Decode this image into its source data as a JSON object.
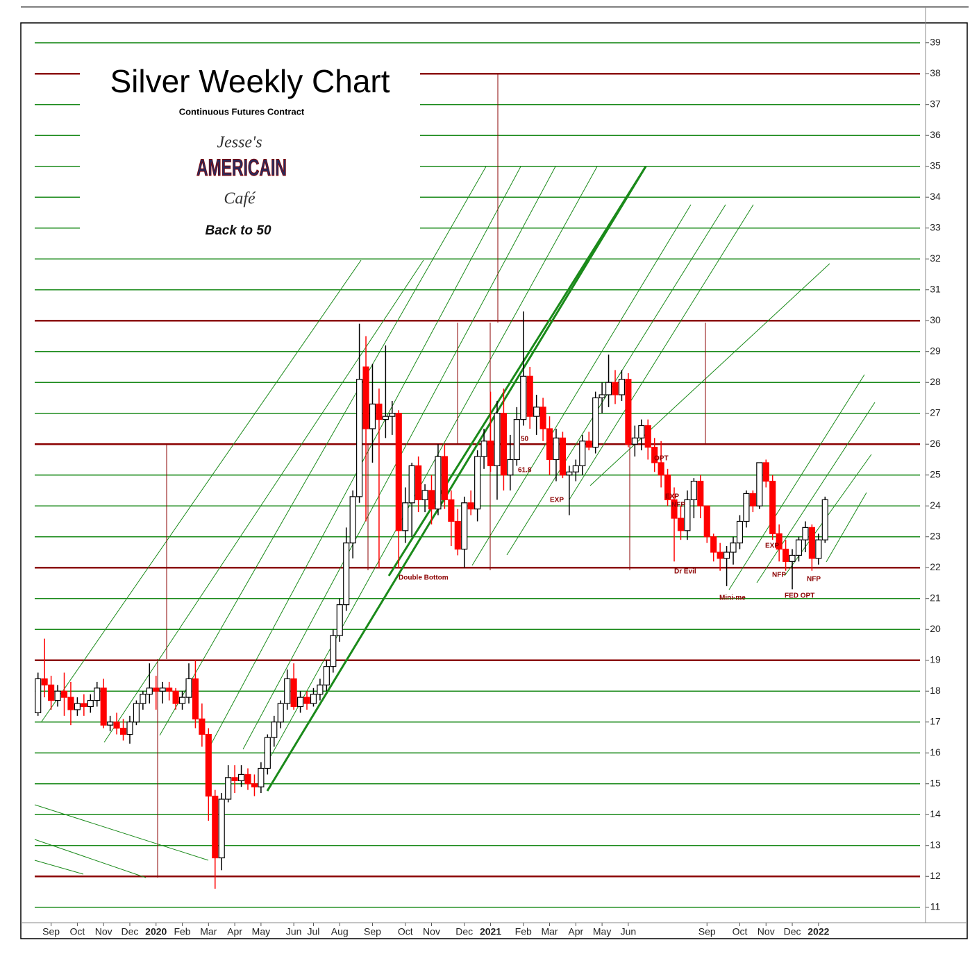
{
  "chart_data": {
    "type": "candlestick",
    "title": "Silver Weekly Chart",
    "subtitle": "Continuous Futures Contract",
    "logo": {
      "top": "Jesse's",
      "middle": "AMERICAIN",
      "bottom": "Café"
    },
    "tagline": "Back to 50",
    "annotations": [
      "50",
      "61.8",
      "EXP",
      "EXP",
      "NFP",
      "OPT",
      "Double Bottom",
      "Dr Evil",
      "Mini-me",
      "EXP",
      "NFP",
      "FED OPT",
      "NFP"
    ],
    "categories": [
      null,
      null,
      "Sep",
      null,
      null,
      null,
      "Oct",
      null,
      null,
      null,
      "Nov",
      null,
      null,
      null,
      "Dec",
      null,
      null,
      null,
      "2020",
      null,
      null,
      null,
      "Feb",
      null,
      null,
      null,
      "Mar",
      null,
      null,
      null,
      "Apr",
      null,
      null,
      null,
      "May",
      null,
      null,
      null,
      null,
      "Jun",
      null,
      null,
      "Jul",
      null,
      null,
      null,
      "Aug",
      null,
      null,
      null,
      null,
      "Sep",
      null,
      null,
      null,
      null,
      "Oct",
      null,
      null,
      null,
      "Nov",
      null,
      null,
      null,
      null,
      "Dec",
      null,
      null,
      null,
      "2021",
      null,
      null,
      null,
      null,
      "Feb",
      null,
      null,
      null,
      "Mar",
      null,
      null,
      null,
      "Apr",
      null,
      null,
      null,
      "May",
      null,
      null,
      null,
      "Jun",
      null,
      null,
      null,
      null,
      null,
      null,
      null,
      null,
      null,
      null,
      null,
      "Sep",
      null,
      null,
      null,
      null,
      "Oct",
      null,
      null,
      null,
      "Nov",
      null,
      null,
      null,
      "Dec",
      null,
      null,
      null,
      "2022",
      null
    ],
    "open": [
      17.3,
      18.4,
      18.2,
      17.7,
      18.0,
      17.8,
      17.4,
      17.6,
      17.5,
      17.7,
      18.1,
      16.9,
      17.0,
      16.8,
      16.6,
      17.0,
      17.6,
      17.9,
      18.1,
      18.0,
      18.1,
      18.0,
      17.6,
      17.8,
      18.4,
      17.1,
      16.6,
      14.6,
      12.6,
      14.5,
      15.2,
      15.1,
      15.3,
      15.0,
      14.9,
      15.5,
      16.5,
      17.0,
      17.6,
      18.4,
      17.5,
      17.8,
      17.6,
      17.9,
      18.2,
      18.8,
      19.8,
      20.8,
      22.8,
      24.3,
      28.5,
      26.5,
      27.3,
      26.8,
      26.9,
      27.0,
      23.2,
      24.1,
      25.3,
      24.2,
      24.5,
      23.9,
      25.6,
      24.2,
      23.5,
      22.6,
      24.1,
      23.9,
      25.6,
      26.1,
      25.3,
      27.0,
      25.0,
      25.5,
      26.8,
      28.2,
      26.9,
      27.2,
      26.5,
      25.5,
      26.2,
      25.0,
      25.1,
      25.3,
      26.1,
      25.9,
      27.5,
      27.6,
      28.0,
      27.6,
      28.1,
      26.0,
      26.2,
      26.6,
      25.9,
      25.4,
      25.0,
      24.2,
      23.6,
      23.2,
      24.2,
      24.8,
      24.0,
      23.0,
      22.5,
      22.3,
      22.5,
      22.8,
      23.5,
      24.4,
      24.0,
      25.4,
      24.8,
      23.1,
      22.6,
      22.2,
      22.4,
      22.9,
      23.3,
      22.3,
      22.9
    ],
    "high": [
      18.6,
      19.7,
      18.5,
      18.2,
      18.6,
      18.3,
      17.8,
      17.9,
      17.9,
      18.3,
      18.4,
      17.2,
      17.3,
      17.1,
      17.2,
      17.7,
      18.0,
      18.9,
      18.5,
      18.3,
      18.3,
      18.1,
      18.0,
      18.9,
      19.0,
      17.6,
      16.8,
      14.8,
      14.7,
      15.6,
      15.6,
      15.6,
      15.5,
      15.3,
      15.7,
      16.6,
      17.2,
      17.7,
      18.7,
      18.9,
      18.0,
      18.0,
      18.1,
      18.4,
      19.0,
      20.0,
      21.0,
      23.3,
      24.5,
      29.9,
      29.5,
      28.6,
      27.8,
      29.2,
      27.4,
      27.1,
      24.6,
      25.4,
      25.6,
      24.7,
      25.0,
      26.0,
      26.0,
      24.5,
      23.9,
      24.3,
      24.5,
      25.8,
      26.5,
      27.7,
      27.4,
      27.8,
      26.3,
      27.2,
      30.3,
      28.5,
      27.6,
      27.5,
      26.9,
      26.5,
      26.4,
      25.3,
      25.5,
      26.3,
      26.4,
      27.7,
      28.0,
      28.9,
      28.4,
      28.4,
      28.3,
      26.6,
      26.8,
      26.8,
      26.2,
      26.1,
      25.2,
      24.6,
      24.0,
      24.5,
      24.9,
      25.0,
      24.0,
      23.1,
      22.8,
      22.7,
      23.0,
      23.7,
      24.5,
      24.5,
      25.4,
      25.5,
      25.0,
      23.4,
      22.9,
      22.6,
      23.0,
      23.5,
      23.4,
      23.1,
      24.3
    ],
    "low": [
      17.2,
      17.8,
      17.4,
      17.5,
      17.2,
      16.9,
      17.2,
      17.2,
      17.3,
      17.5,
      16.8,
      16.7,
      16.6,
      16.4,
      16.3,
      16.9,
      17.4,
      17.6,
      17.4,
      17.6,
      17.7,
      17.4,
      17.4,
      17.6,
      16.8,
      16.2,
      13.8,
      11.6,
      12.2,
      14.4,
      14.7,
      14.9,
      14.8,
      14.6,
      14.7,
      15.3,
      16.2,
      16.8,
      17.4,
      17.4,
      17.3,
      17.4,
      17.5,
      17.7,
      18.0,
      18.6,
      19.6,
      20.6,
      22.3,
      24.1,
      23.5,
      25.4,
      22.0,
      26.2,
      26.3,
      22.0,
      22.8,
      23.0,
      23.8,
      23.8,
      23.4,
      23.7,
      23.9,
      22.7,
      22.4,
      22.0,
      23.7,
      23.5,
      25.2,
      25.1,
      24.2,
      24.5,
      24.5,
      25.3,
      26.6,
      26.5,
      26.3,
      26.1,
      25.0,
      24.8,
      24.9,
      23.7,
      24.8,
      25.0,
      25.8,
      25.7,
      27.0,
      27.2,
      27.3,
      27.4,
      25.9,
      25.6,
      25.8,
      25.5,
      25.1,
      24.6,
      24.0,
      22.2,
      22.9,
      22.9,
      23.6,
      23.6,
      22.8,
      22.2,
      21.9,
      21.4,
      22.1,
      22.6,
      23.3,
      23.8,
      23.9,
      24.6,
      22.9,
      22.2,
      21.9,
      21.3,
      22.2,
      22.5,
      21.9,
      22.1,
      22.8
    ],
    "close": [
      18.4,
      18.2,
      17.7,
      18.0,
      17.8,
      17.4,
      17.6,
      17.5,
      17.7,
      18.1,
      16.9,
      17.0,
      16.8,
      16.6,
      17.0,
      17.6,
      17.9,
      18.1,
      18.0,
      18.1,
      18.0,
      17.6,
      17.8,
      18.4,
      17.1,
      16.6,
      14.6,
      12.6,
      14.5,
      15.2,
      15.1,
      15.3,
      15.0,
      14.9,
      15.5,
      16.5,
      17.0,
      17.6,
      18.4,
      17.5,
      17.8,
      17.6,
      17.9,
      18.2,
      18.8,
      19.8,
      20.8,
      22.8,
      24.3,
      28.1,
      26.5,
      27.3,
      26.8,
      26.9,
      27.0,
      23.2,
      24.1,
      25.3,
      24.2,
      24.5,
      23.9,
      25.6,
      24.2,
      23.5,
      22.6,
      24.1,
      23.9,
      25.6,
      26.1,
      25.3,
      27.0,
      25.0,
      25.5,
      26.8,
      28.2,
      26.9,
      27.2,
      26.5,
      25.5,
      26.2,
      25.0,
      25.1,
      25.3,
      26.1,
      25.9,
      27.5,
      27.6,
      28.0,
      27.6,
      28.1,
      26.0,
      26.2,
      26.6,
      25.9,
      25.4,
      25.0,
      24.2,
      23.6,
      23.2,
      24.2,
      24.8,
      24.0,
      23.0,
      22.5,
      22.3,
      22.5,
      22.8,
      23.5,
      24.4,
      24.0,
      25.4,
      24.8,
      23.1,
      22.6,
      22.2,
      22.4,
      22.9,
      23.3,
      22.3,
      22.9,
      24.2
    ],
    "up_color": "#ffffff",
    "down_color": "#ff0000",
    "ylim": [
      10.5,
      39.6
    ],
    "yticks": [
      11,
      12,
      13,
      14,
      15,
      16,
      17,
      18,
      19,
      20,
      21,
      22,
      23,
      24,
      25,
      26,
      27,
      28,
      29,
      30,
      31,
      32,
      33,
      34,
      35,
      36,
      37,
      38,
      39
    ],
    "grid": true,
    "grid_color": "#1a8a1a",
    "hlines": [
      {
        "value": 38,
        "color": "#8b0000"
      },
      {
        "value": 30,
        "color": "#8b0000"
      },
      {
        "value": 26,
        "color": "#8b0000"
      },
      {
        "value": 22,
        "color": "#8b0000"
      },
      {
        "value": 19,
        "color": "#8b0000"
      },
      {
        "value": 12,
        "color": "#8b0000"
      }
    ]
  }
}
